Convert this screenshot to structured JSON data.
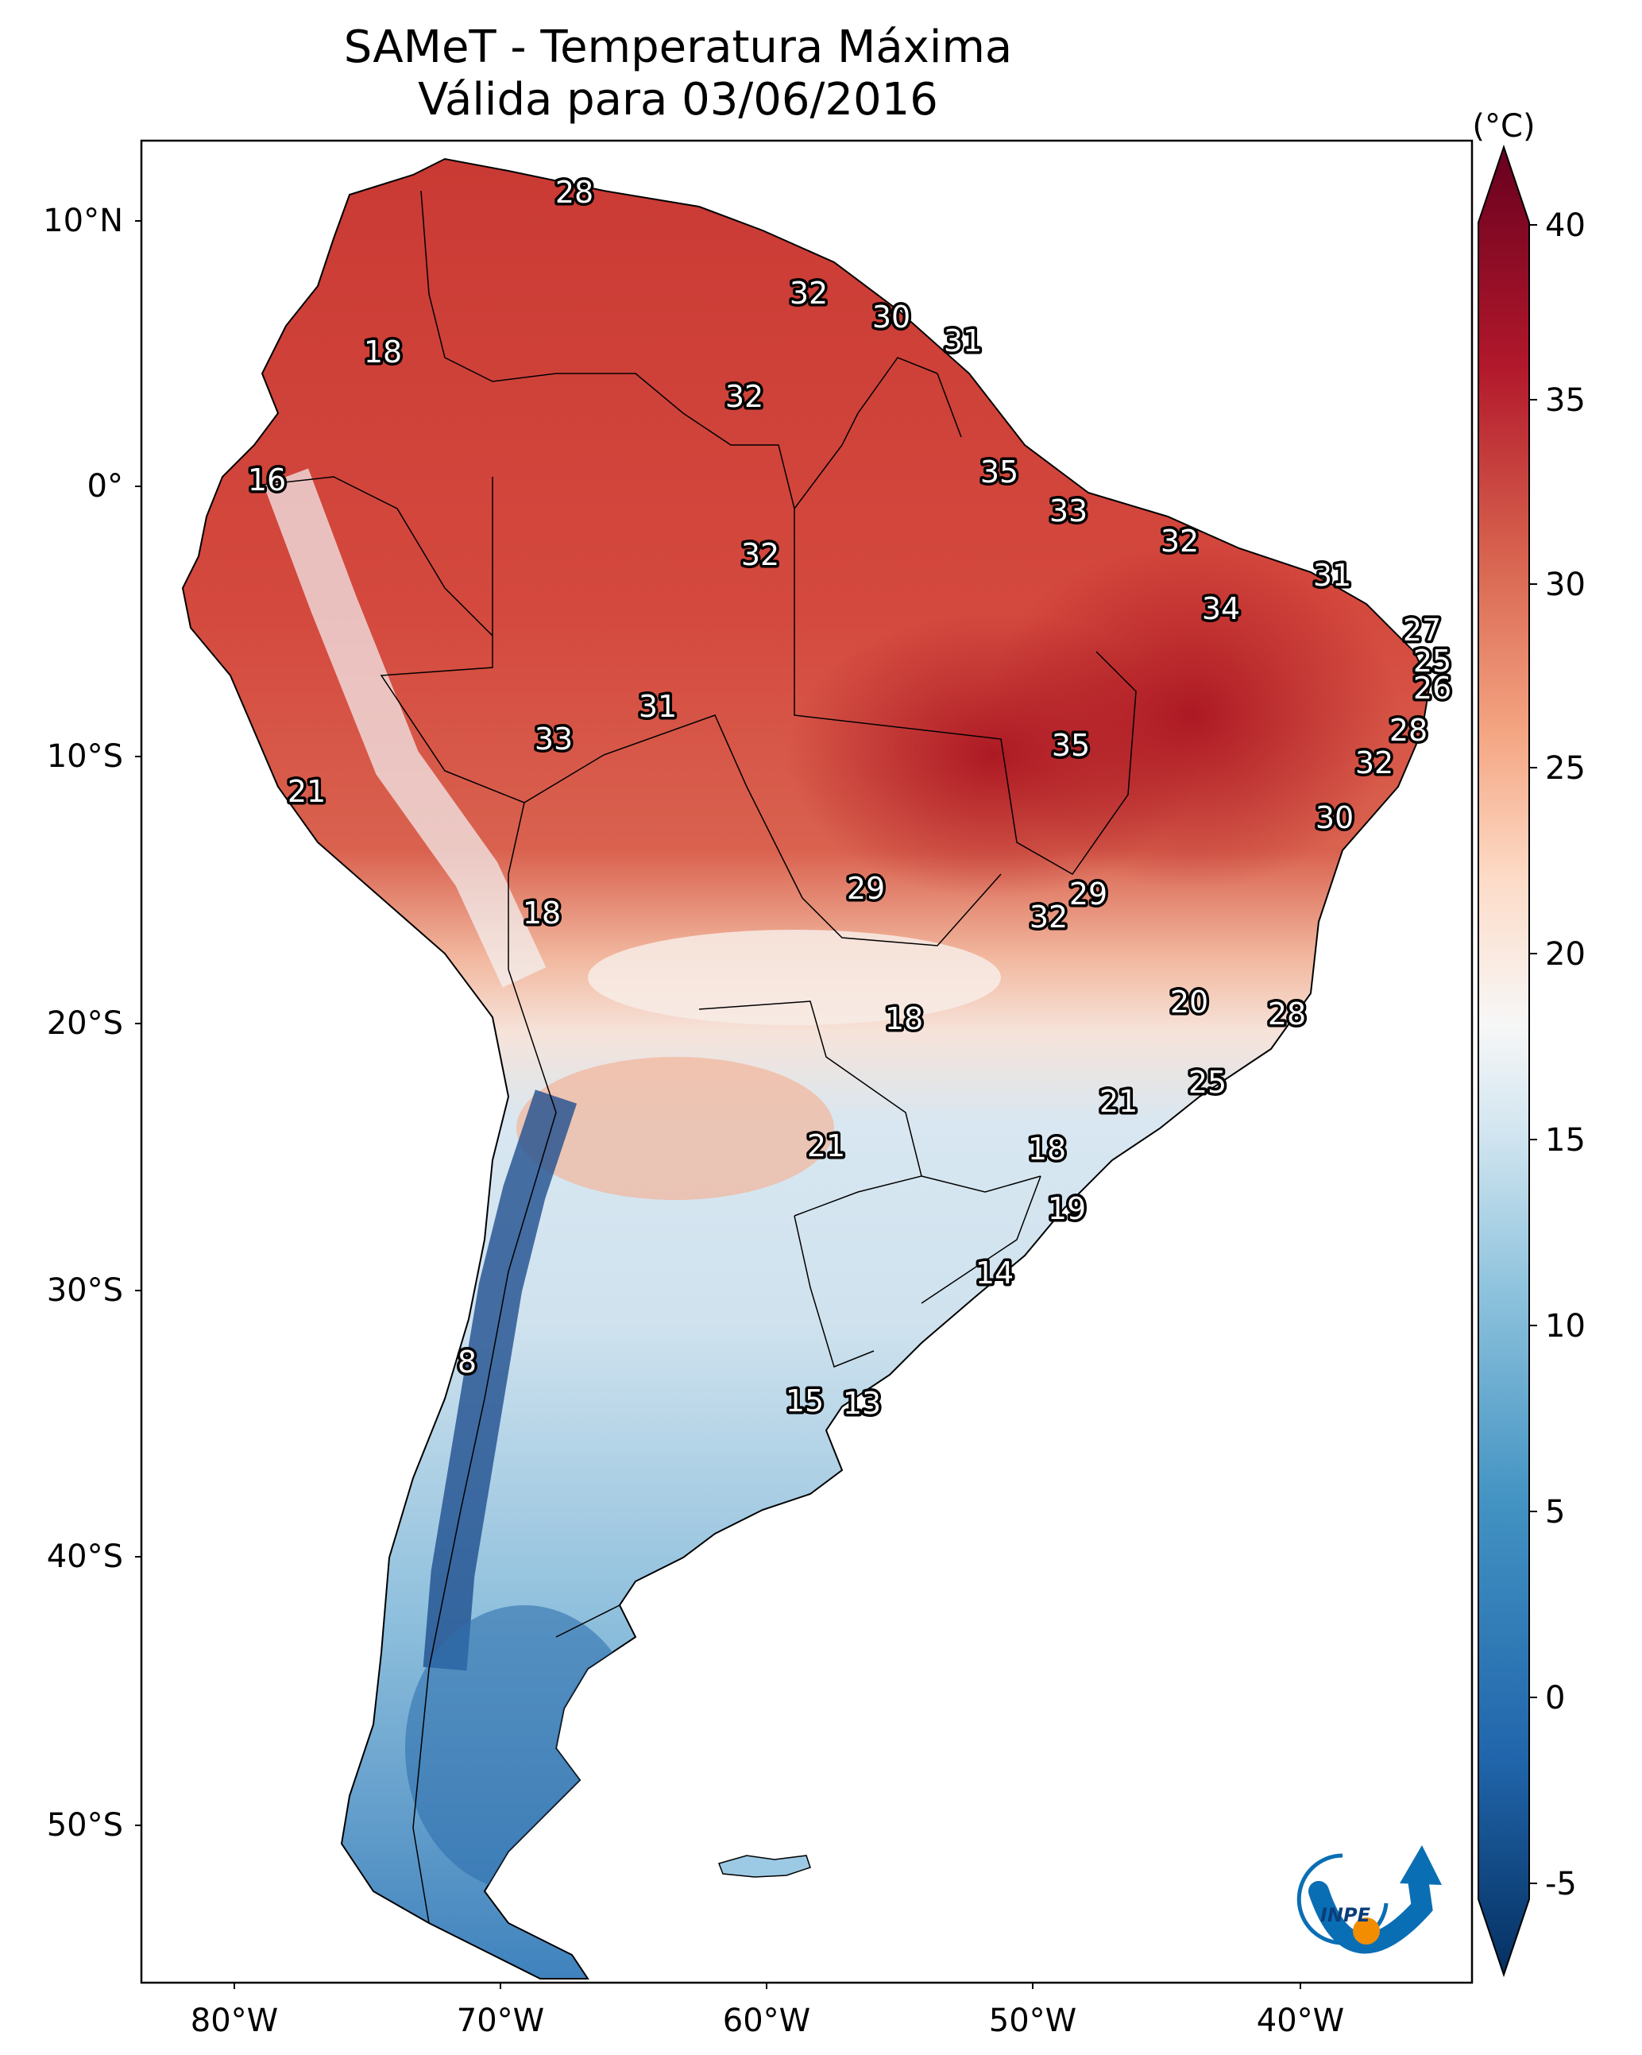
{
  "title": {
    "line1": "SAMeT - Temperatura Máxima",
    "line2": "Válida para 03/06/2016"
  },
  "colorbar": {
    "unit": "(°C)",
    "ticks": [
      "40",
      "35",
      "30",
      "25",
      "20",
      "15",
      "10",
      "5",
      "0",
      "-5"
    ],
    "range_c": [
      -7,
      41
    ],
    "colors": [
      "#053061",
      "#2166ac",
      "#4393c3",
      "#92c5de",
      "#d1e5f0",
      "#f7f7f7",
      "#fddbc7",
      "#f4a582",
      "#d6604d",
      "#b2182b",
      "#67001f"
    ]
  },
  "axes": {
    "lat_labels": [
      "10°N",
      "0°",
      "10°S",
      "20°S",
      "30°S",
      "40°S",
      "50°S"
    ],
    "lon_labels": [
      "80°W",
      "70°W",
      "60°W",
      "50°W",
      "40°W"
    ]
  },
  "contour_labels": [
    "28",
    "32",
    "30",
    "31",
    "18",
    "32",
    "16",
    "35",
    "33",
    "32",
    "32",
    "31",
    "34",
    "27",
    "25",
    "26",
    "31",
    "33",
    "35",
    "28",
    "21",
    "32",
    "30",
    "29",
    "18",
    "29",
    "32",
    "20",
    "28",
    "18",
    "25",
    "21",
    "21",
    "18",
    "19",
    "14",
    "8",
    "15",
    "13"
  ],
  "logo": {
    "text": "INPE",
    "colors": [
      "#0a6eb4",
      "#f28c00"
    ]
  }
}
